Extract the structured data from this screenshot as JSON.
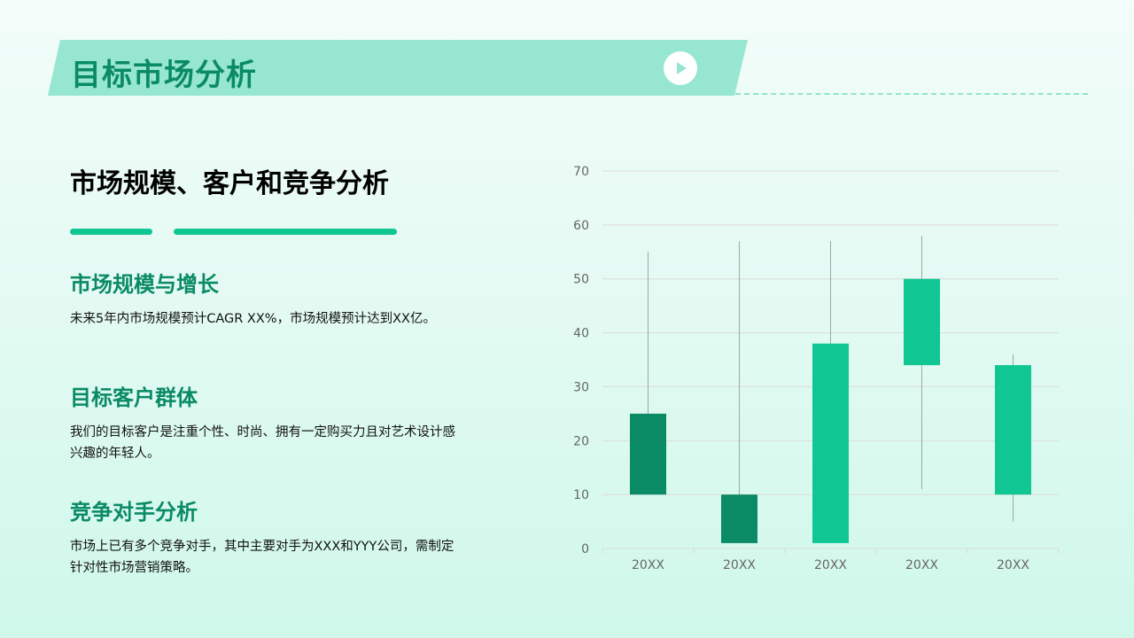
{
  "header": {
    "title": "目标市场分析"
  },
  "main": {
    "subtitle": "市场规模、客户和竞争分析",
    "items": [
      {
        "heading": "市场规模与增长",
        "text": "未来5年内市场规模预计CAGR XX%，市场规模预计达到XX亿。"
      },
      {
        "heading": "目标客户群体",
        "text": "我们的目标客户是注重个性、时尚、拥有一定购买力且对艺术设计感兴趣的年轻人。"
      },
      {
        "heading": "竞争对手分析",
        "text": "市场上已有多个竞争对手，其中主要对手为XXX和YYY公司，需制定针对性市场营销策略。"
      }
    ]
  },
  "colors": {
    "accent": "#10c693",
    "dark_green": "#0a8a65",
    "banner": "#97e6d1",
    "grid": "#ddd9dc",
    "axis_text": "#666666"
  },
  "chart_data": {
    "type": "candlestick",
    "categories": [
      "20XX",
      "20XX",
      "20XX",
      "20XX",
      "20XX"
    ],
    "candles": [
      {
        "open": 25,
        "close": 10,
        "high": 55,
        "low": 10,
        "direction": "down"
      },
      {
        "open": 10,
        "close": 1,
        "high": 57,
        "low": 1,
        "direction": "down"
      },
      {
        "open": 1,
        "close": 38,
        "high": 57,
        "low": 1,
        "direction": "up"
      },
      {
        "open": 34,
        "close": 50,
        "high": 58,
        "low": 11,
        "direction": "up"
      },
      {
        "open": 10,
        "close": 34,
        "high": 36,
        "low": 5,
        "direction": "up"
      }
    ],
    "ylim": [
      0,
      70
    ],
    "yticks": [
      0,
      10,
      20,
      30,
      40,
      50,
      60,
      70
    ],
    "grid": true,
    "colors": {
      "up": "#10c693",
      "down": "#0a8a65",
      "wick": "#9aa8a4"
    }
  }
}
